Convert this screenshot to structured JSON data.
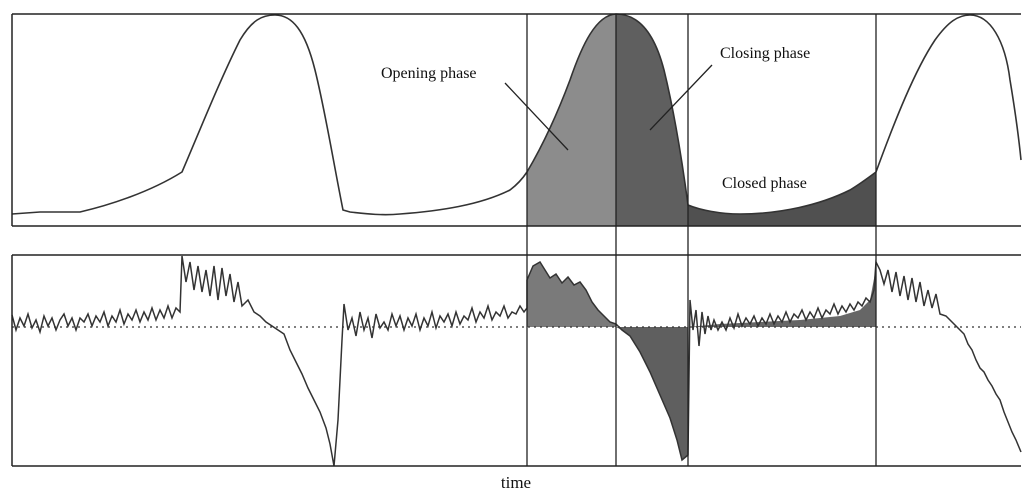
{
  "labels": {
    "opening": "Opening phase",
    "closing": "Closing phase",
    "closed": "Closed phase",
    "time": "time"
  },
  "colors": {
    "opening_fill": "#8c8c8c",
    "closing_fill": "#5f5f5f",
    "closed_fill": "#505050",
    "curve": "#333333",
    "frame": "#222222"
  }
}
